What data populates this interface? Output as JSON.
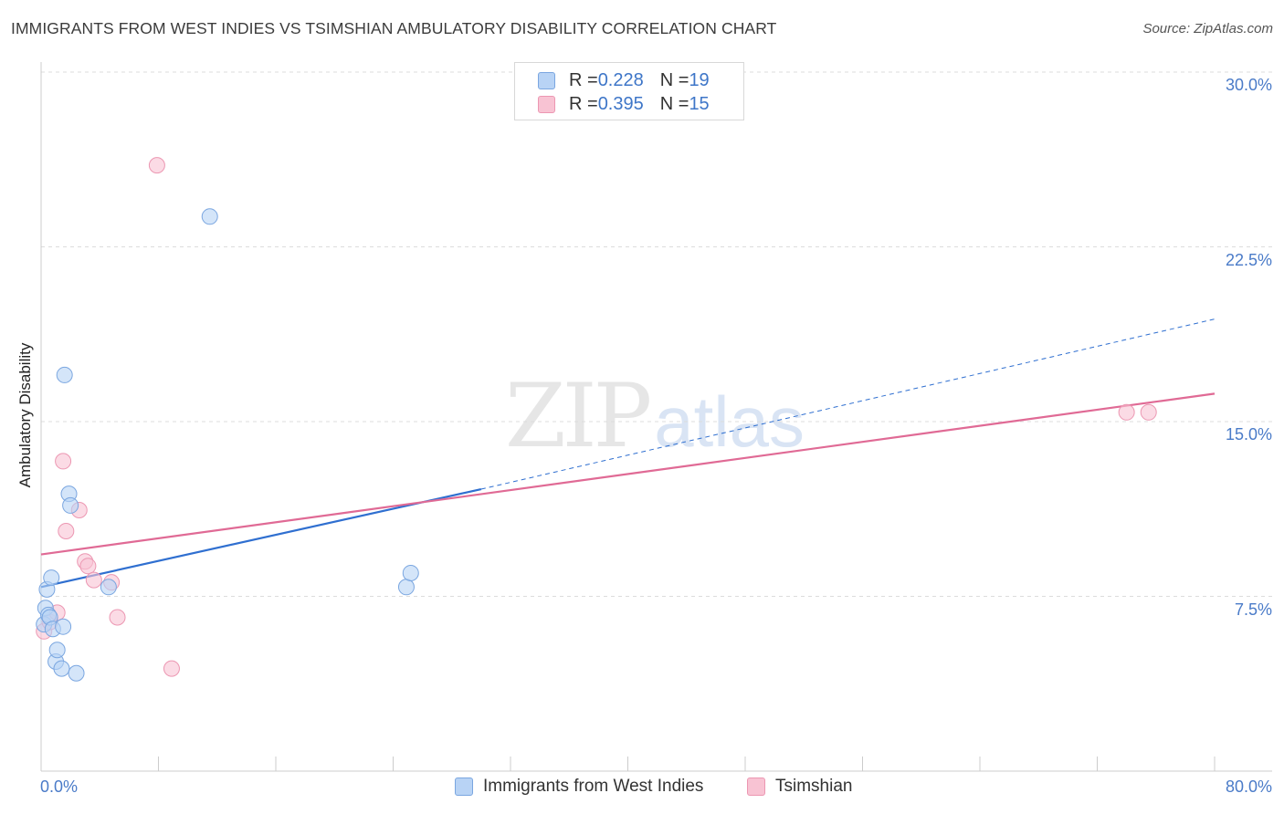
{
  "title": "IMMIGRANTS FROM WEST INDIES VS TSIMSHIAN AMBULATORY DISABILITY CORRELATION CHART",
  "source": "Source: ZipAtlas.com",
  "watermark": {
    "zip": "ZIP",
    "atlas": "atlas"
  },
  "colors": {
    "blue_fill": "#b8d3f5",
    "blue_stroke": "#7aa6e0",
    "blue_line": "#2f6fd0",
    "pink_fill": "#f8c3d3",
    "pink_stroke": "#ec97b2",
    "pink_line": "#e06a95",
    "grid": "#dcdcdc",
    "tick_text": "#4a7bc8"
  },
  "legend": {
    "rows": [
      {
        "r_label": "R = ",
        "r_value": "0.228",
        "n_label": "N = ",
        "n_value": "19"
      },
      {
        "r_label": "R = ",
        "r_value": "0.395",
        "n_label": "N = ",
        "n_value": "15"
      }
    ]
  },
  "chart_data": {
    "type": "scatter",
    "title": "IMMIGRANTS FROM WEST INDIES VS TSIMSHIAN AMBULATORY DISABILITY CORRELATION CHART",
    "xlabel": "",
    "ylabel": "Ambulatory Disability",
    "xlim": [
      0,
      80
    ],
    "ylim": [
      0,
      31
    ],
    "x_tick_labels": [
      "0.0%",
      "80.0%"
    ],
    "y_ticks": [
      7.5,
      15.0,
      22.5,
      30.0
    ],
    "y_tick_labels": [
      "7.5%",
      "15.0%",
      "22.5%",
      "30.0%"
    ],
    "grid": "horizontal dashed",
    "legend_position": "top-center and bottom",
    "series": [
      {
        "name": "Immigrants from West Indies",
        "color": "#b8d3f5",
        "points": [
          [
            0.2,
            6.3
          ],
          [
            0.3,
            7.0
          ],
          [
            0.4,
            7.8
          ],
          [
            0.5,
            6.7
          ],
          [
            0.6,
            6.6
          ],
          [
            0.7,
            8.3
          ],
          [
            0.8,
            6.1
          ],
          [
            1.0,
            4.7
          ],
          [
            1.1,
            5.2
          ],
          [
            1.4,
            4.4
          ],
          [
            1.5,
            6.2
          ],
          [
            1.6,
            17.0
          ],
          [
            1.9,
            11.9
          ],
          [
            2.0,
            11.4
          ],
          [
            2.4,
            4.2
          ],
          [
            4.6,
            7.9
          ],
          [
            11.5,
            23.8
          ],
          [
            24.9,
            7.9
          ],
          [
            25.2,
            8.5
          ]
        ],
        "trend": {
          "x0": 0,
          "y0": 7.9,
          "x1": 30,
          "y1": 12.1,
          "extended_to_x": 80,
          "extended_y": 19.4
        }
      },
      {
        "name": "Tsimshian",
        "color": "#f8c3d3",
        "points": [
          [
            0.2,
            6.0
          ],
          [
            0.6,
            6.4
          ],
          [
            1.1,
            6.8
          ],
          [
            1.5,
            13.3
          ],
          [
            1.7,
            10.3
          ],
          [
            2.6,
            11.2
          ],
          [
            3.0,
            9.0
          ],
          [
            3.2,
            8.8
          ],
          [
            3.6,
            8.2
          ],
          [
            4.8,
            8.1
          ],
          [
            5.2,
            6.6
          ],
          [
            7.9,
            26.0
          ],
          [
            8.9,
            4.4
          ],
          [
            74.0,
            15.4
          ],
          [
            75.5,
            15.4
          ]
        ],
        "trend": {
          "x0": 0,
          "y0": 9.3,
          "x1": 80,
          "y1": 16.2
        }
      }
    ]
  }
}
